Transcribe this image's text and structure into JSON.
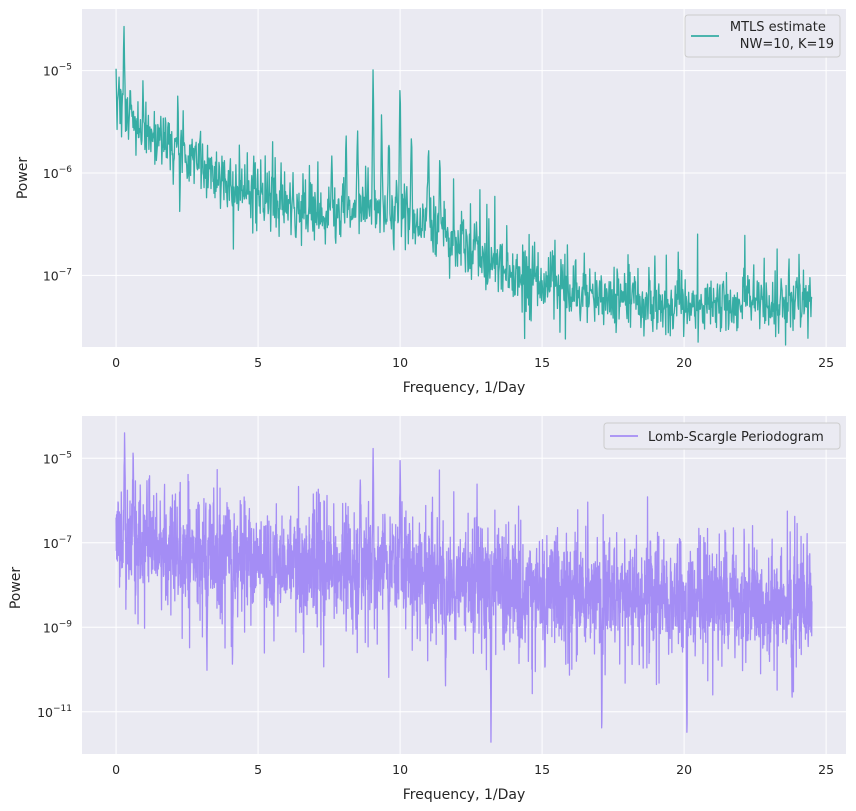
{
  "chart_data": [
    {
      "type": "line",
      "xlabel": "Frequency, 1/Day",
      "ylabel": "Power",
      "xlim": [
        -1.2,
        25.7
      ],
      "ylim": [
        2e-08,
        4e-05
      ],
      "yscale": "log",
      "grid": true,
      "legend_placement": "top-right",
      "x_ticks": [
        0,
        5,
        10,
        15,
        20,
        25
      ],
      "x_tick_labels": [
        "0",
        "5",
        "10",
        "15",
        "20",
        "25"
      ],
      "y_ticks": [
        1e-07,
        1e-06,
        1e-05
      ],
      "y_tick_labels": [
        {
          "base": "10",
          "exp": "−7"
        },
        {
          "base": "10",
          "exp": "−6"
        },
        {
          "base": "10",
          "exp": "−5"
        }
      ],
      "series": [
        {
          "name": "MTLS estimate\n NW=10, K=19",
          "color": "#36ada4",
          "x_range": [
            0,
            24.5
          ],
          "envelope": {
            "x": [
              0,
              0.3,
              1,
              2,
              3,
              4,
              5,
              6,
              7,
              8,
              9,
              10,
              11,
              12,
              13,
              14,
              15,
              16,
              17,
              18,
              19,
              20,
              21,
              22,
              23,
              24,
              24.5
            ],
            "y": [
              4e-06,
              3.5e-06,
              2.8e-06,
              1.9e-06,
              1.2e-06,
              8e-07,
              6e-07,
              4.5e-07,
              3.8e-07,
              4e-07,
              4.2e-07,
              3.8e-07,
              3.2e-07,
              2.2e-07,
              1.4e-07,
              1e-07,
              8e-08,
              6.5e-08,
              5.8e-08,
              5.5e-08,
              5.3e-08,
              5.2e-08,
              5.2e-08,
              5.3e-08,
              5.4e-08,
              5.5e-08,
              5.5e-08
            ]
          },
          "peaks": [
            {
              "x": 0.28,
              "y": 2.7e-05
            },
            {
              "x": 0.1,
              "y": 9e-06
            },
            {
              "x": 0.5,
              "y": 7e-06
            },
            {
              "x": 7.6,
              "y": 1.6e-06
            },
            {
              "x": 8.1,
              "y": 2.5e-06
            },
            {
              "x": 8.5,
              "y": 3e-06
            },
            {
              "x": 9.05,
              "y": 1.2e-05
            },
            {
              "x": 9.35,
              "y": 4e-06
            },
            {
              "x": 9.6,
              "y": 2.5e-06
            },
            {
              "x": 10.0,
              "y": 1e-05
            },
            {
              "x": 10.4,
              "y": 2.8e-06
            },
            {
              "x": 11.0,
              "y": 2.2e-06
            },
            {
              "x": 11.4,
              "y": 1.6e-06
            }
          ]
        }
      ]
    },
    {
      "type": "line",
      "xlabel": "Frequency, 1/Day",
      "ylabel": "Power",
      "xlim": [
        -1.2,
        25.7
      ],
      "ylim": [
        1e-12,
        0.0001
      ],
      "yscale": "log",
      "grid": true,
      "legend_placement": "top-right",
      "x_ticks": [
        0,
        5,
        10,
        15,
        20,
        25
      ],
      "x_tick_labels": [
        "0",
        "5",
        "10",
        "15",
        "20",
        "25"
      ],
      "y_ticks": [
        1e-11,
        1e-09,
        1e-07,
        1e-05
      ],
      "y_tick_labels": [
        {
          "base": "10",
          "exp": "−11"
        },
        {
          "base": "10",
          "exp": "−9"
        },
        {
          "base": "10",
          "exp": "−7"
        },
        {
          "base": "10",
          "exp": "−5"
        }
      ],
      "series": [
        {
          "name": "Lomb-Scargle Periodogram",
          "color": "#a48df5",
          "x_range": [
            0,
            24.5
          ],
          "envelope": {
            "x": [
              0,
              1,
              2,
              3,
              4,
              5,
              6,
              7,
              8,
              9,
              10,
              11,
              12,
              13,
              14,
              15,
              16,
              17,
              18,
              19,
              20,
              21,
              22,
              23,
              24,
              24.5
            ],
            "y": [
              1e-07,
              8e-08,
              6e-08,
              4.5e-08,
              3.8e-08,
              3.2e-08,
              2.6e-08,
              2.4e-08,
              2.5e-08,
              2.6e-08,
              2.3e-08,
              1.8e-08,
              1.4e-08,
              1.1e-08,
              8e-09,
              6.5e-09,
              5.5e-09,
              5e-09,
              4.5e-09,
              4.2e-09,
              4e-09,
              3.8e-09,
              3.8e-09,
              3.8e-09,
              3.8e-09,
              3.8e-09
            ]
          },
          "peaks": [
            {
              "x": 0.3,
              "y": 5e-05
            },
            {
              "x": 0.6,
              "y": 1.8e-05
            },
            {
              "x": 9.05,
              "y": 1.8e-05
            },
            {
              "x": 10.0,
              "y": 1e-05
            },
            {
              "x": 8.6,
              "y": 4e-06
            }
          ],
          "dips": [
            {
              "x": 3.2,
              "y": 9e-11
            },
            {
              "x": 4.1,
              "y": 6e-11
            },
            {
              "x": 9.6,
              "y": 6e-11
            },
            {
              "x": 11.6,
              "y": 4e-11
            },
            {
              "x": 13.2,
              "y": 1.5e-12
            },
            {
              "x": 15.1,
              "y": 7e-11
            },
            {
              "x": 17.1,
              "y": 2e-12
            },
            {
              "x": 20.1,
              "y": 1.5e-12
            },
            {
              "x": 23.8,
              "y": 9e-12
            }
          ]
        }
      ]
    }
  ]
}
